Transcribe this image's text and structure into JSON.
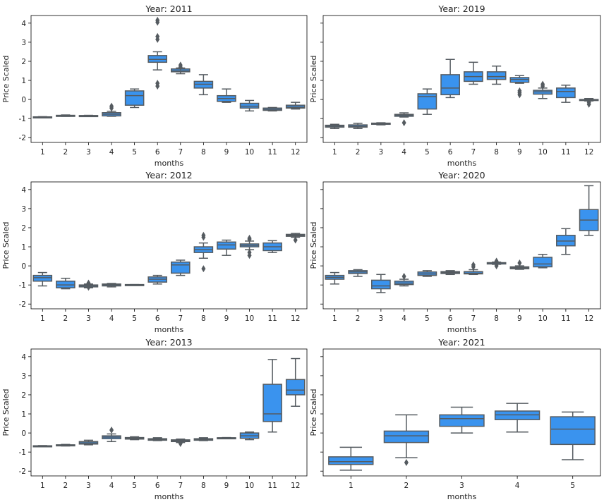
{
  "colors": {
    "box_fill": "#3a93ee",
    "box_line": "#555b60",
    "axes": "#000000"
  },
  "chart_data": [
    {
      "type": "box",
      "title": "Year: 2011",
      "xlabel": "months",
      "ylabel": "Price Scaled",
      "ylim": [
        -2.25,
        4.4
      ],
      "yticks": [
        -2,
        -1,
        0,
        1,
        2,
        3,
        4
      ],
      "categories": [
        "1",
        "2",
        "3",
        "4",
        "5",
        "6",
        "7",
        "8",
        "9",
        "10",
        "11",
        "12"
      ],
      "boxes": [
        {
          "low": -0.96,
          "q1": -0.94,
          "median": -0.93,
          "q3": -0.91,
          "high": -0.9,
          "outliers": []
        },
        {
          "low": -0.88,
          "q1": -0.86,
          "median": -0.85,
          "q3": -0.83,
          "high": -0.81,
          "outliers": []
        },
        {
          "low": -0.88,
          "q1": -0.86,
          "median": -0.85,
          "q3": -0.84,
          "high": -0.83,
          "outliers": []
        },
        {
          "low": -0.88,
          "q1": -0.86,
          "median": -0.77,
          "q3": -0.69,
          "high": -0.62,
          "outliers": [
            -0.45,
            -0.35
          ]
        },
        {
          "low": -0.42,
          "q1": -0.3,
          "median": 0.2,
          "q3": 0.45,
          "high": 0.55,
          "outliers": []
        },
        {
          "low": 1.55,
          "q1": 1.95,
          "median": 2.1,
          "q3": 2.3,
          "high": 2.5,
          "outliers": [
            3.15,
            3.3,
            4.05,
            4.15,
            0.85,
            0.7
          ]
        },
        {
          "low": 1.35,
          "q1": 1.45,
          "median": 1.5,
          "q3": 1.6,
          "high": 1.65,
          "outliers": [
            1.7,
            1.8
          ]
        },
        {
          "low": 0.25,
          "q1": 0.6,
          "median": 0.8,
          "q3": 0.95,
          "high": 1.3,
          "outliers": []
        },
        {
          "low": -0.15,
          "q1": -0.1,
          "median": 0.05,
          "q3": 0.2,
          "high": 0.55,
          "outliers": []
        },
        {
          "low": -0.6,
          "q1": -0.45,
          "median": -0.35,
          "q3": -0.2,
          "high": -0.05,
          "outliers": []
        },
        {
          "low": -0.6,
          "q1": -0.57,
          "median": -0.52,
          "q3": -0.45,
          "high": -0.42,
          "outliers": []
        },
        {
          "low": -0.5,
          "q1": -0.45,
          "median": -0.4,
          "q3": -0.3,
          "high": -0.15,
          "outliers": []
        }
      ]
    },
    {
      "type": "box",
      "title": "Year: 2019",
      "xlabel": "months",
      "ylabel": "Price Scaled",
      "ylim": [
        -2.25,
        4.4
      ],
      "yticks": [
        -2,
        -1,
        0,
        1,
        2,
        3,
        4
      ],
      "categories": [
        "1",
        "2",
        "3",
        "4",
        "5",
        "6",
        "7",
        "8",
        "9",
        "10",
        "11",
        "12"
      ],
      "boxes": [
        {
          "low": -1.52,
          "q1": -1.45,
          "median": -1.4,
          "q3": -1.35,
          "high": -1.3,
          "outliers": []
        },
        {
          "low": -1.52,
          "q1": -1.45,
          "median": -1.4,
          "q3": -1.33,
          "high": -1.25,
          "outliers": []
        },
        {
          "low": -1.33,
          "q1": -1.3,
          "median": -1.27,
          "q3": -1.24,
          "high": -1.22,
          "outliers": []
        },
        {
          "low": -0.92,
          "q1": -0.88,
          "median": -0.82,
          "q3": -0.78,
          "high": -0.7,
          "outliers": [
            -1.22
          ]
        },
        {
          "low": -0.78,
          "q1": -0.5,
          "median": 0.15,
          "q3": 0.3,
          "high": 0.55,
          "outliers": []
        },
        {
          "low": 0.1,
          "q1": 0.25,
          "median": 0.6,
          "q3": 1.3,
          "high": 2.1,
          "outliers": []
        },
        {
          "low": 0.8,
          "q1": 0.95,
          "median": 1.2,
          "q3": 1.45,
          "high": 1.95,
          "outliers": []
        },
        {
          "low": 0.8,
          "q1": 1.05,
          "median": 1.2,
          "q3": 1.45,
          "high": 1.75,
          "outliers": []
        },
        {
          "low": 0.85,
          "q1": 0.9,
          "median": 1.05,
          "q3": 1.15,
          "high": 1.25,
          "outliers": [
            0.45,
            0.35,
            0.25
          ]
        },
        {
          "low": 0.05,
          "q1": 0.28,
          "median": 0.4,
          "q3": 0.48,
          "high": 0.6,
          "outliers": [
            0.7,
            0.8
          ]
        },
        {
          "low": -0.15,
          "q1": 0.1,
          "median": 0.42,
          "q3": 0.6,
          "high": 0.75,
          "outliers": []
        },
        {
          "low": -0.08,
          "q1": -0.05,
          "median": -0.02,
          "q3": 0.0,
          "high": 0.05,
          "outliers": [
            -0.15,
            -0.25
          ]
        }
      ]
    },
    {
      "type": "box",
      "title": "Year: 2012",
      "xlabel": "months",
      "ylabel": "Price Scaled",
      "ylim": [
        -2.25,
        4.4
      ],
      "yticks": [
        -2,
        -1,
        0,
        1,
        2,
        3,
        4
      ],
      "categories": [
        "1",
        "2",
        "3",
        "4",
        "5",
        "6",
        "7",
        "8",
        "9",
        "10",
        "11",
        "12"
      ],
      "boxes": [
        {
          "low": -1.05,
          "q1": -0.8,
          "median": -0.62,
          "q3": -0.5,
          "high": -0.35,
          "outliers": []
        },
        {
          "low": -1.2,
          "q1": -1.15,
          "median": -1.0,
          "q3": -0.8,
          "high": -0.65,
          "outliers": []
        },
        {
          "low": -1.15,
          "q1": -1.1,
          "median": -1.05,
          "q3": -1.0,
          "high": -0.95,
          "outliers": [
            -0.9,
            -1.12
          ]
        },
        {
          "low": -1.1,
          "q1": -1.05,
          "median": -1.0,
          "q3": -0.95,
          "high": -0.92,
          "outliers": []
        },
        {
          "low": -1.0,
          "q1": -1.0,
          "median": -0.99,
          "q3": -0.98,
          "high": -0.98,
          "outliers": []
        },
        {
          "low": -0.95,
          "q1": -0.85,
          "median": -0.7,
          "q3": -0.58,
          "high": -0.5,
          "outliers": []
        },
        {
          "low": -0.5,
          "q1": -0.38,
          "median": 0.05,
          "q3": 0.2,
          "high": 0.3,
          "outliers": []
        },
        {
          "low": 0.4,
          "q1": 0.7,
          "median": 0.85,
          "q3": 1.0,
          "high": 1.2,
          "outliers": [
            1.5,
            1.6,
            -0.15
          ]
        },
        {
          "low": 0.55,
          "q1": 0.88,
          "median": 1.1,
          "q3": 1.25,
          "high": 1.35,
          "outliers": []
        },
        {
          "low": 0.85,
          "q1": 1.0,
          "median": 1.07,
          "q3": 1.15,
          "high": 1.3,
          "outliers": [
            1.4,
            1.45,
            0.7,
            0.55
          ]
        },
        {
          "low": 0.7,
          "q1": 0.8,
          "median": 1.0,
          "q3": 1.2,
          "high": 1.32,
          "outliers": []
        },
        {
          "low": 1.5,
          "q1": 1.55,
          "median": 1.6,
          "q3": 1.65,
          "high": 1.7,
          "outliers": [
            1.35
          ]
        }
      ]
    },
    {
      "type": "box",
      "title": "Year: 2020",
      "xlabel": "months",
      "ylabel": "Price Scaled",
      "ylim": [
        -2.25,
        4.4
      ],
      "yticks": [
        -2,
        -1,
        0,
        1,
        2,
        3,
        4
      ],
      "categories": [
        "1",
        "2",
        "3",
        "4",
        "5",
        "6",
        "7",
        "8",
        "9",
        "10",
        "11",
        "12"
      ],
      "boxes": [
        {
          "low": -0.95,
          "q1": -0.7,
          "median": -0.6,
          "q3": -0.5,
          "high": -0.35,
          "outliers": []
        },
        {
          "low": -0.55,
          "q1": -0.4,
          "median": -0.32,
          "q3": -0.25,
          "high": -0.2,
          "outliers": []
        },
        {
          "low": -1.4,
          "q1": -1.2,
          "median": -1.05,
          "q3": -0.75,
          "high": -0.45,
          "outliers": []
        },
        {
          "low": -1.05,
          "q1": -0.98,
          "median": -0.9,
          "q3": -0.8,
          "high": -0.7,
          "outliers": [
            -0.55
          ]
        },
        {
          "low": -0.55,
          "q1": -0.5,
          "median": -0.42,
          "q3": -0.32,
          "high": -0.25,
          "outliers": []
        },
        {
          "low": -0.45,
          "q1": -0.4,
          "median": -0.35,
          "q3": -0.3,
          "high": -0.25,
          "outliers": []
        },
        {
          "low": -0.45,
          "q1": -0.42,
          "median": -0.38,
          "q3": -0.3,
          "high": -0.2,
          "outliers": [
            -0.05,
            0.05
          ]
        },
        {
          "low": 0.08,
          "q1": 0.1,
          "median": 0.12,
          "q3": 0.17,
          "high": 0.2,
          "outliers": [
            0.0,
            0.25
          ]
        },
        {
          "low": -0.18,
          "q1": -0.15,
          "median": -0.1,
          "q3": -0.05,
          "high": 0.0,
          "outliers": [
            0.15
          ]
        },
        {
          "low": -0.1,
          "q1": -0.05,
          "median": 0.1,
          "q3": 0.45,
          "high": 0.6,
          "outliers": []
        },
        {
          "low": 0.6,
          "q1": 1.05,
          "median": 1.3,
          "q3": 1.6,
          "high": 1.95,
          "outliers": []
        },
        {
          "low": 1.6,
          "q1": 1.85,
          "median": 2.4,
          "q3": 2.95,
          "high": 4.2,
          "outliers": []
        }
      ]
    },
    {
      "type": "box",
      "title": "Year: 2013",
      "xlabel": "months",
      "ylabel": "Price Scaled",
      "ylim": [
        -2.25,
        4.4
      ],
      "yticks": [
        -2,
        -1,
        0,
        1,
        2,
        3,
        4
      ],
      "categories": [
        "1",
        "2",
        "3",
        "4",
        "5",
        "6",
        "7",
        "8",
        "9",
        "10",
        "11",
        "12"
      ],
      "boxes": [
        {
          "low": -0.7,
          "q1": -0.69,
          "median": -0.68,
          "q3": -0.67,
          "high": -0.66,
          "outliers": []
        },
        {
          "low": -0.68,
          "q1": -0.66,
          "median": -0.64,
          "q3": -0.62,
          "high": -0.6,
          "outliers": []
        },
        {
          "low": -0.62,
          "q1": -0.58,
          "median": -0.52,
          "q3": -0.45,
          "high": -0.38,
          "outliers": []
        },
        {
          "low": -0.45,
          "q1": -0.3,
          "median": -0.22,
          "q3": -0.15,
          "high": -0.05,
          "outliers": [
            0.15
          ]
        },
        {
          "low": -0.35,
          "q1": -0.32,
          "median": -0.28,
          "q3": -0.24,
          "high": -0.2,
          "outliers": []
        },
        {
          "low": -0.4,
          "q1": -0.38,
          "median": -0.35,
          "q3": -0.3,
          "high": -0.25,
          "outliers": []
        },
        {
          "low": -0.5,
          "q1": -0.45,
          "median": -0.4,
          "q3": -0.36,
          "high": -0.32,
          "outliers": [
            -0.55
          ]
        },
        {
          "low": -0.4,
          "q1": -0.38,
          "median": -0.35,
          "q3": -0.3,
          "high": -0.25,
          "outliers": []
        },
        {
          "low": -0.3,
          "q1": -0.28,
          "median": -0.26,
          "q3": -0.25,
          "high": -0.24,
          "outliers": []
        },
        {
          "low": -0.35,
          "q1": -0.28,
          "median": -0.15,
          "q3": 0.0,
          "high": 0.05,
          "outliers": []
        },
        {
          "low": 0.05,
          "q1": 0.6,
          "median": 1.0,
          "q3": 2.55,
          "high": 3.85,
          "outliers": []
        },
        {
          "low": 1.4,
          "q1": 2.0,
          "median": 2.25,
          "q3": 2.8,
          "high": 3.9,
          "outliers": []
        }
      ]
    },
    {
      "type": "box",
      "title": "Year: 2021",
      "xlabel": "months",
      "ylabel": "Price Scaled",
      "ylim": [
        -2.25,
        4.4
      ],
      "yticks": [
        -2,
        -1,
        0,
        1,
        2,
        3,
        4
      ],
      "categories": [
        "1",
        "2",
        "3",
        "4",
        "5"
      ],
      "boxes": [
        {
          "low": -1.95,
          "q1": -1.65,
          "median": -1.5,
          "q3": -1.25,
          "high": -0.75,
          "outliers": []
        },
        {
          "low": -1.3,
          "q1": -0.5,
          "median": -0.15,
          "q3": 0.1,
          "high": 0.95,
          "outliers": [
            -1.55
          ]
        },
        {
          "low": 0.0,
          "q1": 0.35,
          "median": 0.75,
          "q3": 0.95,
          "high": 1.35,
          "outliers": []
        },
        {
          "low": 0.05,
          "q1": 0.7,
          "median": 0.95,
          "q3": 1.15,
          "high": 1.55,
          "outliers": []
        },
        {
          "low": -1.4,
          "q1": -0.6,
          "median": 0.2,
          "q3": 0.85,
          "high": 1.1,
          "outliers": []
        }
      ]
    }
  ]
}
